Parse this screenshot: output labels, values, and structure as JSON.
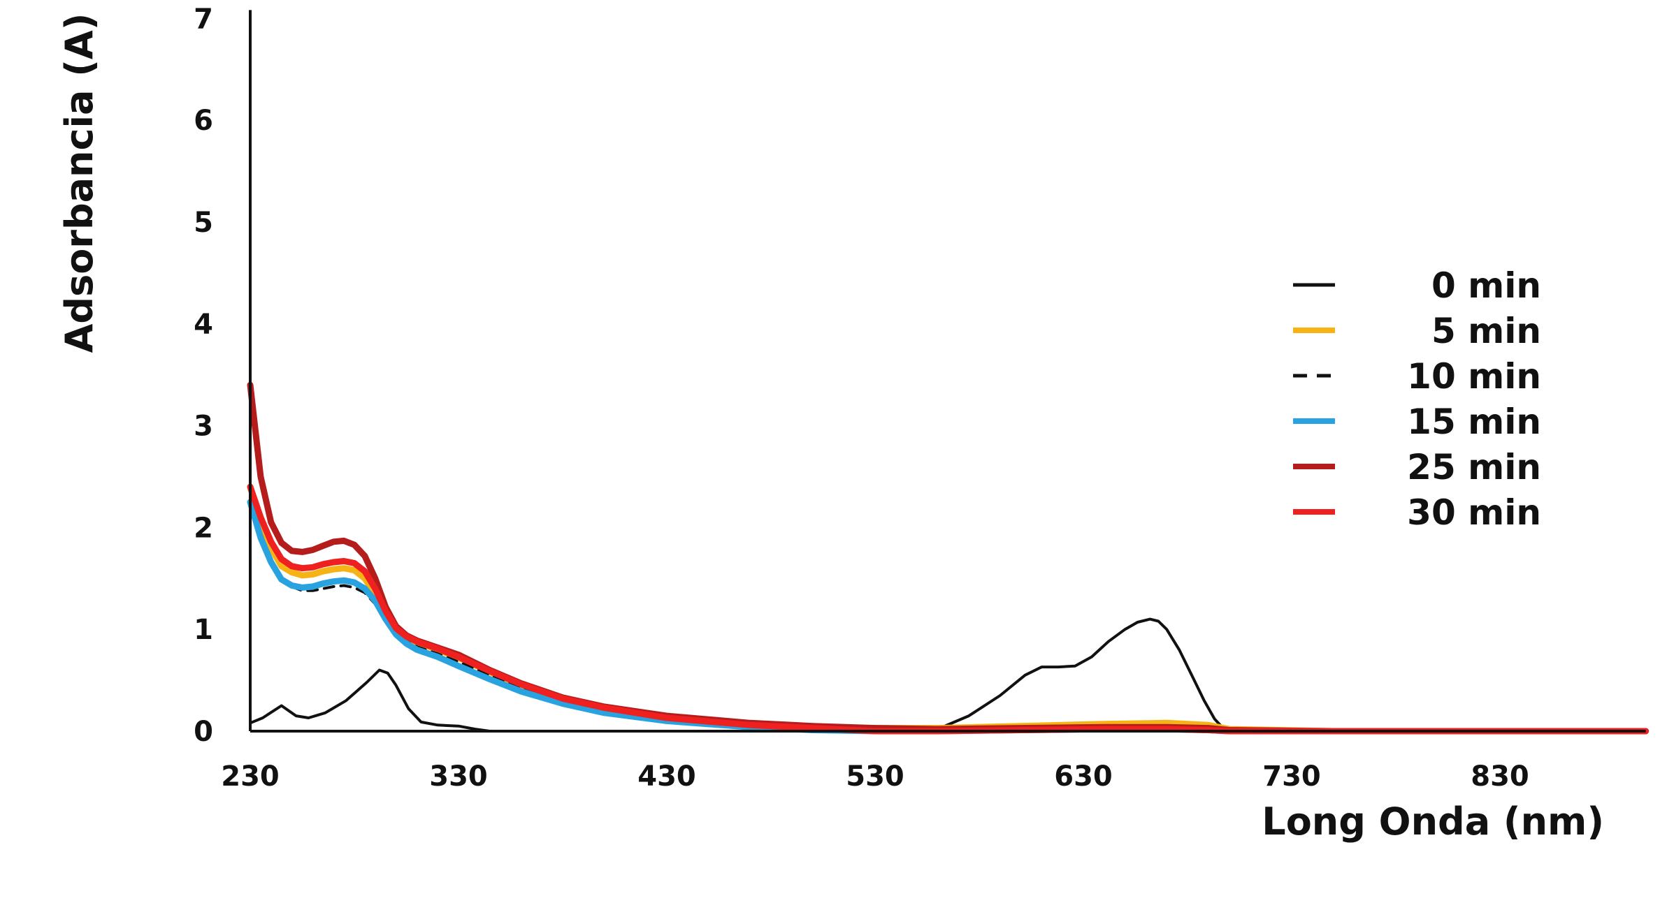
{
  "chart_data": {
    "type": "line",
    "title": "",
    "xlabel": "Long Onda (nm)",
    "ylabel": "Adsorbancia (A)",
    "xlim": [
      230,
      900
    ],
    "ylim": [
      0,
      7
    ],
    "x_ticks": [
      "230",
      "330",
      "430",
      "530",
      "630",
      "730",
      "830"
    ],
    "y_ticks": [
      "0",
      "1",
      "2",
      "3",
      "4",
      "5",
      "6",
      "7"
    ],
    "grid": false,
    "legend_position": "right",
    "series": [
      {
        "name": "0 min",
        "color": "#111111",
        "dash": "solid",
        "x": [
          230,
          236,
          245,
          252,
          258,
          266,
          276,
          286,
          292,
          296,
          300,
          306,
          312,
          320,
          330,
          338,
          345,
          360,
          400,
          450,
          500,
          540,
          560,
          575,
          590,
          602,
          610,
          618,
          626,
          634,
          642,
          650,
          656,
          662,
          666,
          670,
          676,
          682,
          688,
          693,
          697,
          700,
          720,
          800,
          900
        ],
        "y": [
          0.08,
          0.13,
          0.25,
          0.15,
          0.13,
          0.18,
          0.3,
          0.48,
          0.6,
          0.57,
          0.45,
          0.22,
          0.09,
          0.06,
          0.05,
          0.02,
          0.0,
          0.0,
          0.0,
          0.0,
          0.0,
          0.0,
          0.02,
          0.15,
          0.35,
          0.55,
          0.63,
          0.63,
          0.64,
          0.73,
          0.88,
          1.0,
          1.07,
          1.1,
          1.08,
          1.0,
          0.8,
          0.55,
          0.3,
          0.12,
          0.03,
          0.0,
          0.0,
          0.0,
          0.0
        ]
      },
      {
        "name": "5 min",
        "color": "#f5b316",
        "dash": "solid",
        "x": [
          230,
          235,
          240,
          245,
          250,
          255,
          260,
          265,
          270,
          275,
          280,
          285,
          290,
          295,
          300,
          305,
          310,
          320,
          330,
          345,
          360,
          380,
          400,
          430,
          470,
          500,
          530,
          560,
          600,
          640,
          670,
          690,
          700,
          750,
          800,
          900
        ],
        "y": [
          2.4,
          2.05,
          1.8,
          1.62,
          1.56,
          1.53,
          1.54,
          1.57,
          1.59,
          1.6,
          1.58,
          1.5,
          1.34,
          1.15,
          1.0,
          0.92,
          0.87,
          0.8,
          0.72,
          0.58,
          0.45,
          0.31,
          0.22,
          0.13,
          0.07,
          0.04,
          0.03,
          0.03,
          0.05,
          0.07,
          0.08,
          0.06,
          0.02,
          0.0,
          0.0,
          0.0
        ]
      },
      {
        "name": "10 min",
        "color": "#111111",
        "dash": "dashed",
        "x": [
          230,
          235,
          240,
          245,
          250,
          255,
          260,
          265,
          270,
          275,
          280,
          285,
          290,
          295,
          300,
          305,
          310,
          320,
          330,
          345,
          360,
          380,
          400,
          430,
          470,
          500,
          530,
          560,
          600,
          640,
          670,
          690,
          700,
          750,
          800,
          900
        ],
        "y": [
          2.3,
          1.95,
          1.68,
          1.5,
          1.42,
          1.38,
          1.38,
          1.4,
          1.42,
          1.43,
          1.41,
          1.36,
          1.25,
          1.1,
          0.97,
          0.88,
          0.83,
          0.76,
          0.68,
          0.55,
          0.42,
          0.29,
          0.2,
          0.11,
          0.05,
          0.02,
          0.01,
          0.01,
          0.02,
          0.03,
          0.03,
          0.02,
          0.01,
          0.0,
          0.0,
          0.0
        ]
      },
      {
        "name": "15 min",
        "color": "#29a3e0",
        "dash": "solid",
        "x": [
          230,
          235,
          240,
          245,
          250,
          255,
          260,
          265,
          270,
          275,
          280,
          285,
          290,
          295,
          300,
          305,
          310,
          320,
          330,
          345,
          360,
          380,
          400,
          430,
          470,
          500,
          530,
          560,
          600,
          640,
          670,
          690,
          700,
          750,
          800,
          900
        ],
        "y": [
          2.25,
          1.9,
          1.66,
          1.49,
          1.43,
          1.41,
          1.42,
          1.45,
          1.47,
          1.48,
          1.46,
          1.4,
          1.28,
          1.1,
          0.95,
          0.86,
          0.8,
          0.73,
          0.64,
          0.51,
          0.39,
          0.27,
          0.18,
          0.1,
          0.04,
          0.01,
          0.0,
          0.0,
          0.01,
          0.02,
          0.02,
          0.01,
          0.0,
          0.0,
          0.0,
          0.0
        ]
      },
      {
        "name": "25 min",
        "color": "#b51c1c",
        "dash": "solid",
        "x": [
          230,
          235,
          240,
          245,
          250,
          255,
          260,
          265,
          270,
          275,
          280,
          285,
          290,
          295,
          300,
          305,
          310,
          320,
          330,
          345,
          360,
          380,
          400,
          430,
          470,
          500,
          530,
          560,
          600,
          640,
          670,
          690,
          700,
          750,
          800,
          900
        ],
        "y": [
          3.4,
          2.5,
          2.05,
          1.85,
          1.77,
          1.76,
          1.78,
          1.82,
          1.86,
          1.87,
          1.83,
          1.72,
          1.5,
          1.22,
          1.03,
          0.94,
          0.89,
          0.82,
          0.75,
          0.6,
          0.47,
          0.33,
          0.24,
          0.15,
          0.08,
          0.05,
          0.03,
          0.02,
          0.03,
          0.04,
          0.04,
          0.03,
          0.01,
          0.0,
          0.0,
          0.0
        ]
      },
      {
        "name": "30 min",
        "color": "#ee2020",
        "dash": "solid",
        "x": [
          230,
          235,
          240,
          245,
          250,
          255,
          260,
          265,
          270,
          275,
          280,
          285,
          290,
          295,
          300,
          305,
          310,
          320,
          330,
          345,
          360,
          380,
          400,
          430,
          470,
          500,
          530,
          560,
          600,
          640,
          670,
          690,
          700,
          750,
          800,
          900
        ],
        "y": [
          2.4,
          2.1,
          1.86,
          1.69,
          1.62,
          1.6,
          1.61,
          1.64,
          1.66,
          1.67,
          1.65,
          1.57,
          1.4,
          1.18,
          1.01,
          0.93,
          0.88,
          0.81,
          0.73,
          0.59,
          0.46,
          0.32,
          0.23,
          0.13,
          0.06,
          0.03,
          0.0,
          0.0,
          0.01,
          0.02,
          0.02,
          0.01,
          0.0,
          0.0,
          0.0,
          0.0
        ]
      }
    ]
  }
}
